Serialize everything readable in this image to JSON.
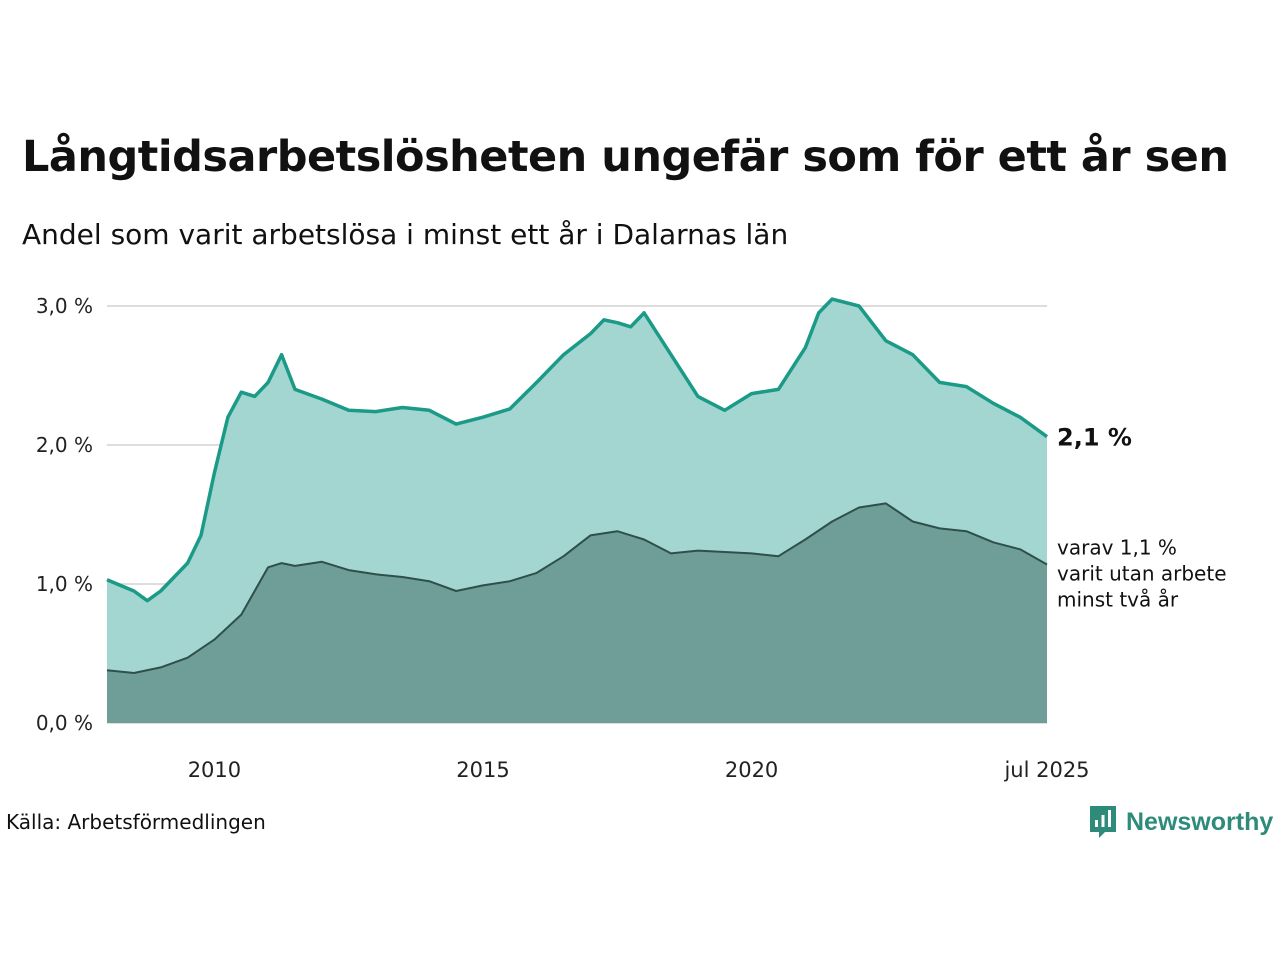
{
  "title": "Långtidsarbetslösheten ungefär som för ett år sen",
  "subtitle": "Andel som varit arbetslösa i minst ett år i Dalarnas län",
  "source": "Källa: Arbetsförmedlingen",
  "brand": "Newsworthy",
  "end_label": "2,1 %",
  "note_lines": [
    "varav 1,1 %",
    "varit utan arbete",
    "minst två år"
  ],
  "colors": {
    "total_fill": "#a3d6d0",
    "total_line": "#1a9a87",
    "long_fill": "#6e9e97",
    "long_line": "#2f4f4b",
    "grid": "#dddddd",
    "brand": "#2e8b7a"
  },
  "chart_data": {
    "type": "area",
    "title": "Långtidsarbetslösheten ungefär som för ett år sen",
    "subtitle": "Andel som varit arbetslösa i minst ett år i Dalarnas län",
    "xlabel": "",
    "ylabel": "",
    "x_range": [
      2008.0,
      2025.5
    ],
    "ylim": [
      0,
      3.0
    ],
    "y_ticks": [
      "0,0 %",
      "1,0 %",
      "2,0 %",
      "3,0 %"
    ],
    "x_ticks": [
      "2010",
      "2015",
      "2020",
      "jul 2025"
    ],
    "x_tick_values": [
      2010,
      2015,
      2020,
      2025.5
    ],
    "grid": true,
    "series": [
      {
        "x": [
          2008.0,
          2008.5,
          2008.75,
          2009.0,
          2009.5,
          2009.75,
          2010.0,
          2010.25,
          2010.5,
          2010.75,
          2011.0,
          2011.25,
          2011.5,
          2012.0,
          2012.5,
          2013.0,
          2013.5,
          2014.0,
          2014.5,
          2015.0,
          2015.5,
          2016.0,
          2016.5,
          2017.0,
          2017.25,
          2017.5,
          2017.75,
          2018.0,
          2018.5,
          2019.0,
          2019.5,
          2020.0,
          2020.5,
          2021.0,
          2021.25,
          2021.5,
          2022.0,
          2022.5,
          2023.0,
          2023.5,
          2024.0,
          2024.5,
          2025.0,
          2025.5
        ],
        "values": [
          1.03,
          0.95,
          0.88,
          0.95,
          1.15,
          1.35,
          1.8,
          2.2,
          2.38,
          2.35,
          2.45,
          2.65,
          2.4,
          2.33,
          2.25,
          2.24,
          2.27,
          2.25,
          2.15,
          2.2,
          2.26,
          2.45,
          2.65,
          2.8,
          2.9,
          2.88,
          2.85,
          2.95,
          2.65,
          2.35,
          2.25,
          2.37,
          2.4,
          2.7,
          2.95,
          3.05,
          3.0,
          2.75,
          2.65,
          2.45,
          2.42,
          2.3,
          2.2,
          2.06
        ]
      },
      {
        "x": [
          2008.0,
          2008.5,
          2009.0,
          2009.5,
          2010.0,
          2010.5,
          2011.0,
          2011.25,
          2011.5,
          2012.0,
          2012.5,
          2013.0,
          2013.5,
          2014.0,
          2014.5,
          2015.0,
          2015.5,
          2016.0,
          2016.5,
          2017.0,
          2017.5,
          2018.0,
          2018.5,
          2019.0,
          2019.5,
          2020.0,
          2020.5,
          2021.0,
          2021.5,
          2022.0,
          2022.5,
          2023.0,
          2023.5,
          2024.0,
          2024.5,
          2025.0,
          2025.5
        ],
        "values": [
          0.38,
          0.36,
          0.4,
          0.47,
          0.6,
          0.78,
          1.12,
          1.15,
          1.13,
          1.16,
          1.1,
          1.07,
          1.05,
          1.02,
          0.95,
          0.99,
          1.02,
          1.08,
          1.2,
          1.35,
          1.38,
          1.32,
          1.22,
          1.24,
          1.23,
          1.22,
          1.2,
          1.32,
          1.45,
          1.55,
          1.58,
          1.45,
          1.4,
          1.38,
          1.3,
          1.25,
          1.14
        ]
      }
    ]
  }
}
